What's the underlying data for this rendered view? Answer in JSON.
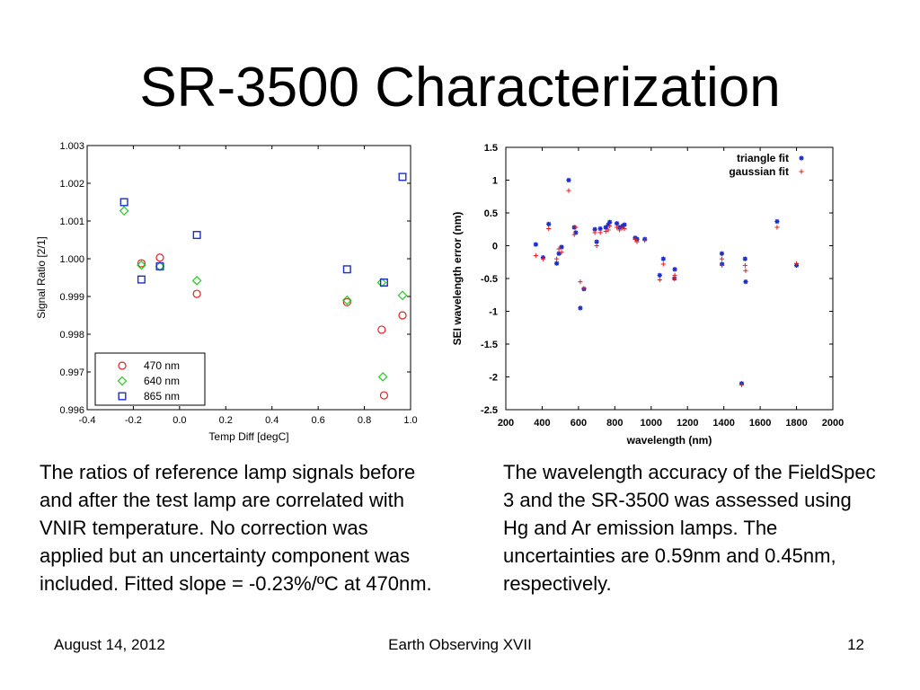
{
  "slide": {
    "title": "SR-3500 Characterization",
    "caption_left": "The ratios of reference lamp signals before and after the test lamp are correlated with VNIR temperature. No correction was applied but an uncertainty component was included. Fitted slope = -0.23%/ºC at 470nm.",
    "caption_right": "The wavelength accuracy of the FieldSpec 3 and the SR-3500 was assessed using Hg and Ar emission lamps. The uncertainties are 0.59nm and 0.45nm, respectively.",
    "footer_date": "August 14, 2012",
    "footer_center": "Earth Observing XVII",
    "footer_page": "12"
  },
  "chart_data": [
    {
      "type": "scatter",
      "xlabel": "Temp Diff [degC]",
      "ylabel": "Signal Ratio [2/1]",
      "xlim": [
        -0.4,
        1.0
      ],
      "ylim": [
        0.996,
        1.003
      ],
      "xticks": [
        "-0.4",
        "-0.2",
        "0.0",
        "0.2",
        "0.4",
        "0.6",
        "0.8",
        "1.0"
      ],
      "yticks": [
        "0.996",
        "0.997",
        "0.998",
        "0.999",
        "1.000",
        "1.001",
        "1.002",
        "1.003"
      ],
      "legend_position": "bottom-left",
      "series": [
        {
          "name": "470 nm",
          "marker": "circle",
          "color": "#e02020",
          "points": [
            [
              -0.165,
              0.99988
            ],
            [
              -0.085,
              1.00003
            ],
            [
              0.075,
              0.99907
            ],
            [
              0.725,
              0.99885
            ],
            [
              0.875,
              0.99812
            ],
            [
              0.885,
              0.99638
            ],
            [
              0.965,
              0.9985
            ]
          ]
        },
        {
          "name": "640 nm",
          "marker": "diamond",
          "color": "#22cc22",
          "points": [
            [
              -0.24,
              1.00127
            ],
            [
              -0.165,
              0.99983
            ],
            [
              -0.085,
              0.9998
            ],
            [
              0.075,
              0.99942
            ],
            [
              0.725,
              0.9989
            ],
            [
              0.875,
              0.99937
            ],
            [
              0.88,
              0.99687
            ],
            [
              0.965,
              0.99903
            ]
          ]
        },
        {
          "name": "865 nm",
          "marker": "square",
          "color": "#1a2ec8",
          "points": [
            [
              -0.24,
              1.0015
            ],
            [
              -0.165,
              0.99945
            ],
            [
              -0.085,
              0.9998
            ],
            [
              0.075,
              1.00063
            ],
            [
              0.725,
              0.99972
            ],
            [
              0.885,
              0.99937
            ],
            [
              0.965,
              1.00217
            ]
          ]
        }
      ]
    },
    {
      "type": "scatter",
      "xlabel": "wavelength (nm)",
      "ylabel": "SEI wavelength error (nm)",
      "xlim": [
        200,
        2000
      ],
      "ylim": [
        -2.5,
        1.5
      ],
      "xticks": [
        "200",
        "400",
        "600",
        "800",
        "1000",
        "1200",
        "1400",
        "1600",
        "1800",
        "2000"
      ],
      "yticks": [
        "-2.5",
        "-2",
        "-1.5",
        "-1",
        "-0.5",
        "0",
        "0.5",
        "1",
        "1.5"
      ],
      "legend_position": "top-right",
      "series": [
        {
          "name": "triangle fit",
          "marker": "asterisk",
          "color": "#1a2ec8",
          "points": [
            [
              365,
              0.02
            ],
            [
              405,
              -0.18
            ],
            [
              436,
              0.33
            ],
            [
              480,
              -0.27
            ],
            [
              492,
              -0.12
            ],
            [
              507,
              -0.02
            ],
            [
              546,
              1.0
            ],
            [
              577,
              0.28
            ],
            [
              585,
              0.2
            ],
            [
              610,
              -0.95
            ],
            [
              630,
              -0.66
            ],
            [
              690,
              0.25
            ],
            [
              700,
              0.06
            ],
            [
              720,
              0.26
            ],
            [
              750,
              0.28
            ],
            [
              764,
              0.32
            ],
            [
              772,
              0.36
            ],
            [
              811,
              0.34
            ],
            [
              826,
              0.28
            ],
            [
              842,
              0.3
            ],
            [
              853,
              0.32
            ],
            [
              912,
              0.12
            ],
            [
              922,
              0.1
            ],
            [
              965,
              0.1
            ],
            [
              1047,
              -0.45
            ],
            [
              1067,
              -0.2
            ],
            [
              1128,
              -0.5
            ],
            [
              1130,
              -0.36
            ],
            [
              1389,
              -0.12
            ],
            [
              1390,
              -0.28
            ],
            [
              1498,
              -2.1
            ],
            [
              1517,
              -0.2
            ],
            [
              1520,
              -0.55
            ],
            [
              1693,
              0.37
            ],
            [
              1800,
              -0.3
            ]
          ]
        },
        {
          "name": "gaussian fit",
          "marker": "plus",
          "color": "#e02020",
          "points": [
            [
              365,
              -0.15
            ],
            [
              405,
              -0.2
            ],
            [
              436,
              0.26
            ],
            [
              480,
              -0.2
            ],
            [
              492,
              -0.05
            ],
            [
              507,
              -0.1
            ],
            [
              546,
              0.84
            ],
            [
              577,
              0.17
            ],
            [
              585,
              0.28
            ],
            [
              610,
              -0.55
            ],
            [
              630,
              -0.65
            ],
            [
              690,
              0.2
            ],
            [
              700,
              0.0
            ],
            [
              720,
              0.2
            ],
            [
              750,
              0.22
            ],
            [
              764,
              0.24
            ],
            [
              772,
              0.3
            ],
            [
              811,
              0.28
            ],
            [
              826,
              0.24
            ],
            [
              842,
              0.27
            ],
            [
              853,
              0.26
            ],
            [
              912,
              0.1
            ],
            [
              922,
              0.06
            ],
            [
              965,
              0.08
            ],
            [
              1047,
              -0.52
            ],
            [
              1067,
              -0.28
            ],
            [
              1128,
              -0.5
            ],
            [
              1130,
              -0.45
            ],
            [
              1389,
              -0.2
            ],
            [
              1390,
              -0.3
            ],
            [
              1498,
              -2.12
            ],
            [
              1517,
              -0.3
            ],
            [
              1520,
              -0.38
            ],
            [
              1693,
              0.28
            ],
            [
              1800,
              -0.27
            ]
          ]
        }
      ]
    }
  ]
}
